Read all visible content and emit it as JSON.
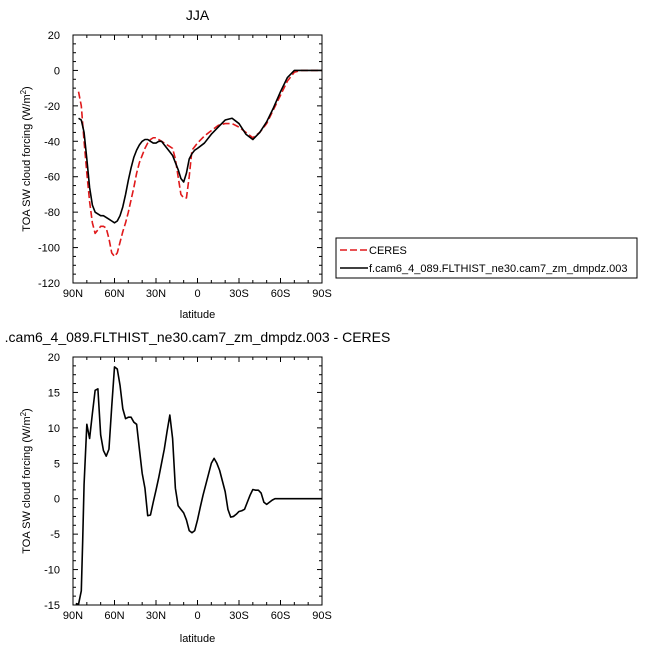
{
  "chart_data": [
    {
      "type": "line",
      "title": "JJA",
      "xlabel": "latitude",
      "ylabel": "TOA SW cloud forcing (W/m",
      "ylabel_sup": "2",
      "ylabel_close": ")",
      "xlim": [
        90,
        -90
      ],
      "ylim": [
        -120,
        20
      ],
      "xticks": [
        90,
        60,
        30,
        0,
        -30,
        -60,
        -90
      ],
      "xtick_labels": [
        "90N",
        "60N",
        "30N",
        "0",
        "30S",
        "60S",
        "90S"
      ],
      "yticks": [
        20,
        0,
        -20,
        -40,
        -60,
        -80,
        -100,
        -120
      ],
      "ytick_labels": [
        "20",
        "0",
        "-20",
        "-40",
        "-60",
        "-80",
        "-100",
        "-120"
      ],
      "legend": {
        "placement": "outside-right-bottom"
      },
      "series": [
        {
          "name": "CERES",
          "color": "#e0191b",
          "dash": true,
          "x": [
            86,
            84,
            82,
            80,
            78,
            76,
            74,
            72,
            70,
            68,
            66,
            64,
            62,
            60,
            58,
            56,
            54,
            52,
            50,
            48,
            46,
            44,
            42,
            40,
            38,
            36,
            34,
            32,
            30,
            28,
            26,
            24,
            22,
            20,
            18,
            16,
            14,
            12,
            10,
            8,
            6,
            4,
            2,
            0,
            -5,
            -10,
            -15,
            -20,
            -25,
            -30,
            -35,
            -40,
            -45,
            -50,
            -55,
            -60,
            -65,
            -70,
            -75,
            -80,
            -85,
            -90
          ],
          "y": [
            -12,
            -20,
            -40,
            -58,
            -74,
            -86,
            -92,
            -90,
            -88,
            -88,
            -89,
            -95,
            -103,
            -105,
            -103,
            -97,
            -91,
            -86,
            -80,
            -73,
            -66,
            -58,
            -52,
            -48,
            -44,
            -41,
            -39,
            -38,
            -38,
            -39,
            -40,
            -41,
            -42,
            -43,
            -44,
            -50,
            -60,
            -70,
            -72,
            -72,
            -60,
            -45,
            -43,
            -41,
            -37,
            -34,
            -31,
            -30,
            -30,
            -32,
            -35,
            -38,
            -35,
            -30,
            -22,
            -14,
            -6,
            -1,
            0,
            0,
            0,
            0
          ]
        },
        {
          "name": "f.cam6_4_089.FLTHIST_ne30.cam7_zm_dmpdz.003",
          "color": "#000000",
          "dash": false,
          "x": [
            86,
            84,
            82,
            80,
            78,
            76,
            74,
            72,
            70,
            68,
            66,
            64,
            62,
            60,
            58,
            56,
            54,
            52,
            50,
            48,
            46,
            44,
            42,
            40,
            38,
            36,
            34,
            32,
            30,
            28,
            26,
            24,
            22,
            20,
            18,
            16,
            14,
            12,
            10,
            8,
            6,
            4,
            2,
            0,
            -5,
            -10,
            -15,
            -20,
            -25,
            -30,
            -35,
            -40,
            -45,
            -50,
            -55,
            -60,
            -65,
            -70,
            -75,
            -80,
            -85,
            -90
          ],
          "y": [
            -27,
            -28,
            -35,
            -50,
            -66,
            -76,
            -80,
            -81,
            -82,
            -82,
            -83,
            -84,
            -85,
            -86,
            -85,
            -82,
            -77,
            -70,
            -62,
            -55,
            -49,
            -45,
            -42,
            -40,
            -39,
            -39,
            -40,
            -41,
            -41,
            -40,
            -40,
            -42,
            -44,
            -46,
            -48,
            -52,
            -56,
            -61,
            -63,
            -58,
            -50,
            -47,
            -45,
            -44,
            -41,
            -36,
            -32,
            -28,
            -27,
            -30,
            -36,
            -39,
            -35,
            -29,
            -21,
            -12,
            -4,
            0,
            0,
            0,
            0,
            0
          ]
        }
      ]
    },
    {
      "type": "line",
      "title": ".cam6_4_089.FLTHIST_ne30.cam7_zm_dmpdz.003 - CERES",
      "xlabel": "latitude",
      "ylabel": "TOA SW cloud forcing (W/m",
      "ylabel_sup": "2",
      "ylabel_close": ")",
      "xlim": [
        90,
        -90
      ],
      "ylim": [
        -15,
        20
      ],
      "xticks": [
        90,
        60,
        30,
        0,
        -30,
        -60,
        -90
      ],
      "xtick_labels": [
        "90N",
        "60N",
        "30N",
        "0",
        "30S",
        "60S",
        "90S"
      ],
      "yticks": [
        20,
        15,
        10,
        5,
        0,
        -5,
        -10,
        -15
      ],
      "ytick_labels": [
        "20",
        "15",
        "10",
        "5",
        "0",
        "-5",
        "-10",
        "-15"
      ],
      "series": [
        {
          "color": "#000000",
          "dash": false,
          "x": [
            88,
            86,
            84,
            83,
            82,
            80,
            78,
            76,
            74,
            72,
            70,
            68,
            66,
            64,
            62,
            60,
            58,
            56,
            54,
            52,
            50,
            48,
            46,
            44,
            42,
            40,
            38,
            36,
            34,
            32,
            30,
            28,
            26,
            24,
            22,
            20,
            18,
            16,
            14,
            12,
            10,
            8,
            6,
            4,
            2,
            0,
            -2,
            -4,
            -6,
            -8,
            -10,
            -12,
            -14,
            -16,
            -18,
            -20,
            -22,
            -24,
            -26,
            -28,
            -30,
            -32,
            -34,
            -36,
            -38,
            -40,
            -42,
            -44,
            -46,
            -48,
            -50,
            -52,
            -54,
            -56,
            -58,
            -60,
            -62,
            -64,
            -66,
            -68,
            -70,
            -72,
            -74,
            -76,
            -78,
            -80,
            -82,
            -84,
            -86,
            -88,
            -90
          ],
          "y": [
            -14.8,
            -14.9,
            -13,
            -6,
            2,
            10.5,
            8.5,
            12,
            15.3,
            15.5,
            9,
            6.8,
            6,
            7,
            13,
            18.6,
            18.3,
            16,
            12.7,
            11.3,
            11.5,
            11.5,
            10.8,
            10.5,
            7,
            3.6,
            1.5,
            -2.4,
            -2.3,
            -0.5,
            1.2,
            3,
            5,
            7,
            9.5,
            11.8,
            8.5,
            1.5,
            -1,
            -1.5,
            -2,
            -3,
            -4.5,
            -4.8,
            -4.5,
            -3,
            -1.2,
            0.5,
            2,
            3.5,
            5,
            5.7,
            5,
            4,
            2.5,
            1,
            -1.5,
            -2.6,
            -2.5,
            -2.2,
            -1.8,
            -1.7,
            -1.5,
            -0.5,
            0.5,
            1.3,
            1.2,
            1.2,
            0.8,
            -0.5,
            -0.8,
            -0.5,
            -0.2,
            0,
            0,
            0,
            0,
            0,
            0,
            0,
            0,
            0,
            0,
            0,
            0,
            0,
            0,
            0,
            0,
            0,
            0
          ]
        }
      ]
    }
  ]
}
